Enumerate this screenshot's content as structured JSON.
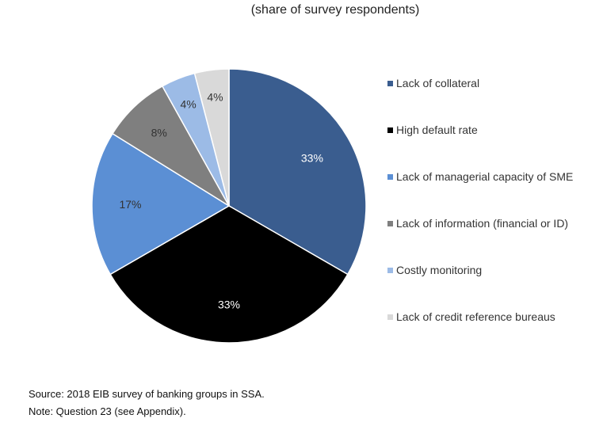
{
  "chart_data": {
    "type": "pie",
    "title": "",
    "subtitle": "(share of survey respondents)",
    "slices": [
      {
        "label": "Lack of collateral",
        "value": 33,
        "display": "33%",
        "color": "#3a5d8f",
        "text_color": "#ffffff"
      },
      {
        "label": "High default rate",
        "value": 33,
        "display": "33%",
        "color": "#000000",
        "text_color": "#ffffff"
      },
      {
        "label": "Lack of managerial capacity of SME",
        "value": 17,
        "display": "17%",
        "color": "#5b8fd4",
        "text_color": "#333333"
      },
      {
        "label": "Lack of information (financial or ID)",
        "value": 8,
        "display": "8%",
        "color": "#7f7f7f",
        "text_color": "#333333"
      },
      {
        "label": "Costly monitoring",
        "value": 4,
        "display": "4%",
        "color": "#9cbbe6",
        "text_color": "#333333"
      },
      {
        "label": "Lack of credit reference bureaus",
        "value": 4,
        "display": "4%",
        "color": "#d9d9d9",
        "text_color": "#333333"
      }
    ],
    "legend_position": "right"
  },
  "footnotes": {
    "source": "Source: 2018 EIB survey of banking groups in SSA.",
    "note": "Note: Question 23 (see Appendix)."
  }
}
